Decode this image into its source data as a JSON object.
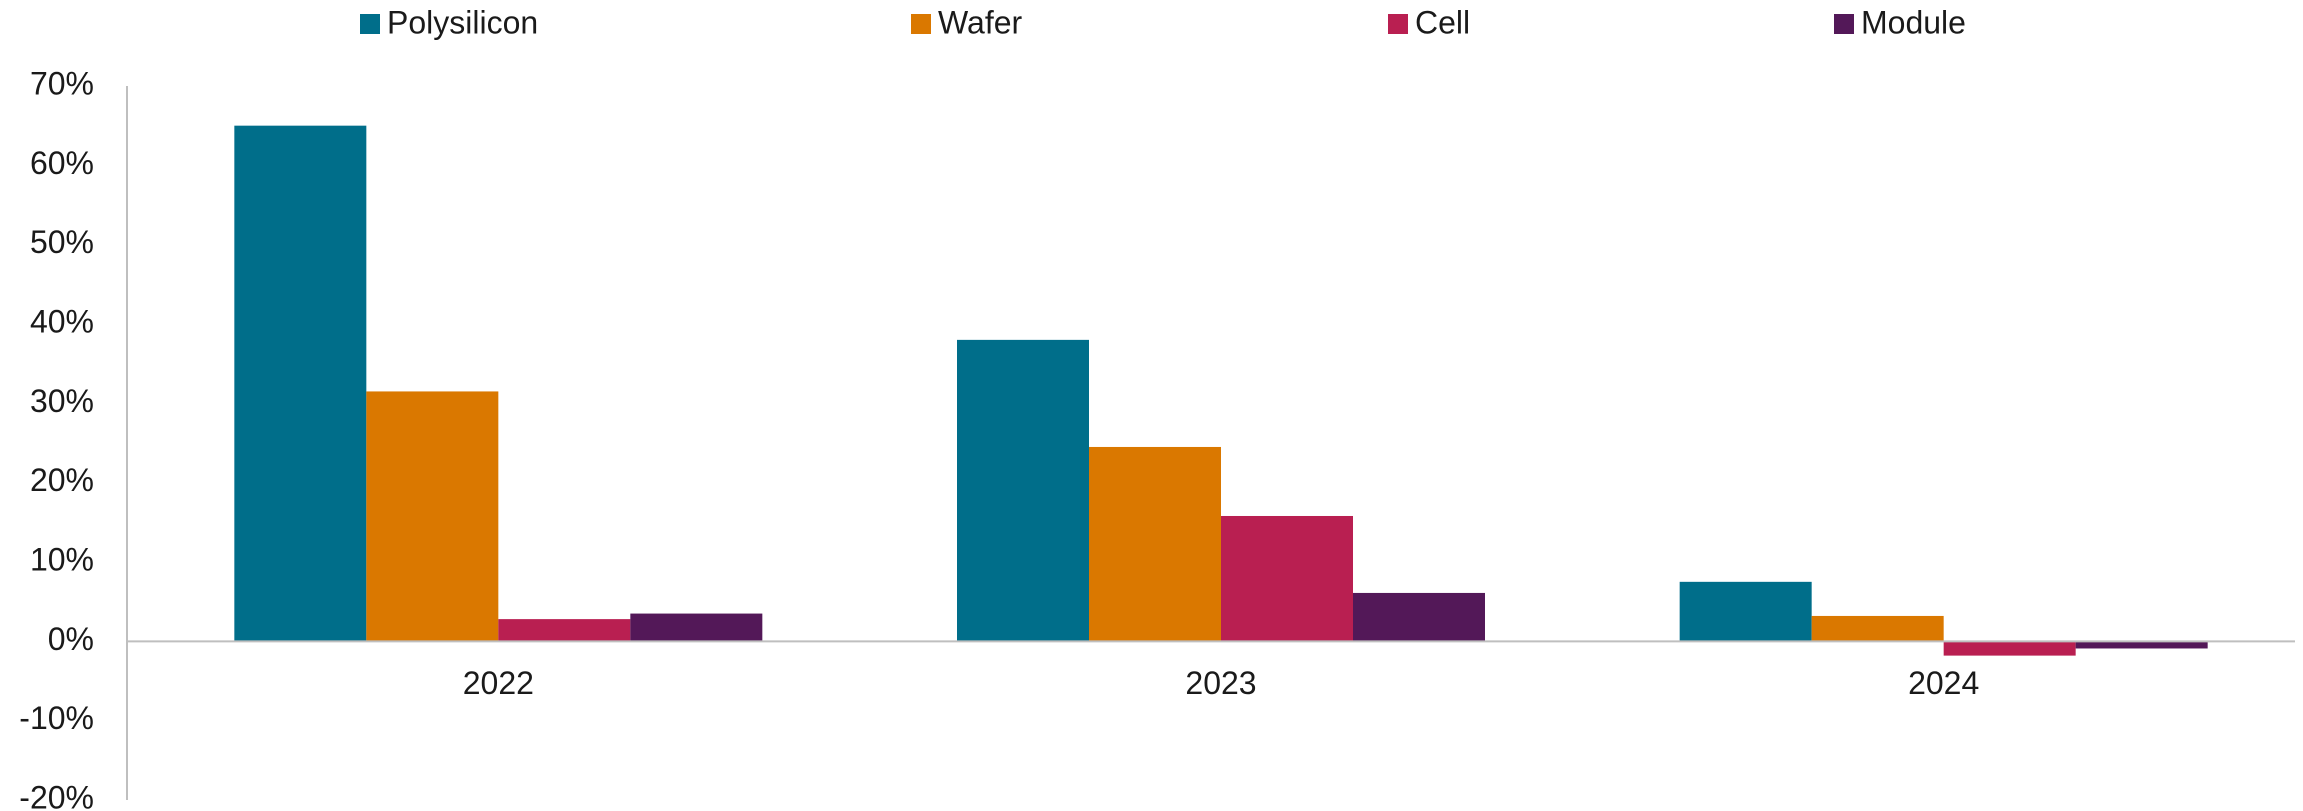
{
  "chart_data": {
    "type": "bar",
    "categories": [
      "2022",
      "2023",
      "2024"
    ],
    "series": [
      {
        "name": "Polysilicon",
        "color": "#006E8A",
        "values": [
          65,
          38,
          7.5
        ]
      },
      {
        "name": "Wafer",
        "color": "#DA7800",
        "values": [
          31.5,
          24.5,
          3.2
        ]
      },
      {
        "name": "Cell",
        "color": "#B91F51",
        "values": [
          2.8,
          15.8,
          -1.8
        ]
      },
      {
        "name": "Module",
        "color": "#531858",
        "values": [
          3.5,
          6.1,
          -0.9
        ]
      }
    ],
    "ylim": [
      -20,
      70
    ],
    "yticks": [
      70,
      60,
      50,
      40,
      30,
      20,
      10,
      0,
      -10,
      -20
    ],
    "ytick_labels": [
      "70%",
      "60%",
      "50%",
      "40%",
      "30%",
      "20%",
      "10%",
      "0%",
      "-10%",
      "-20%"
    ],
    "legend_position": "top",
    "grid": false
  }
}
